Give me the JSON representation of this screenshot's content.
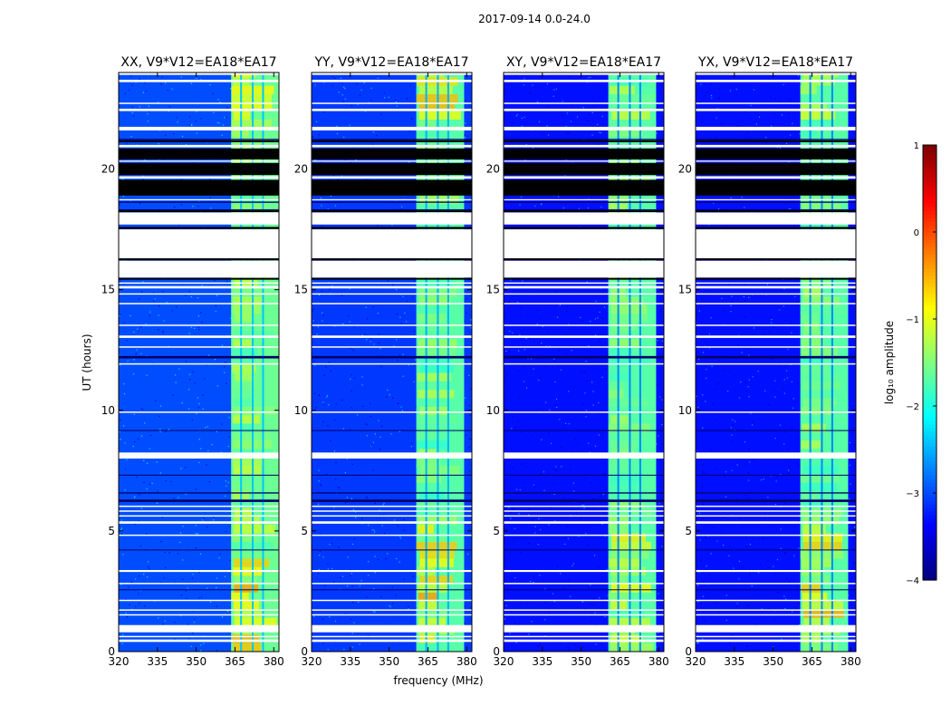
{
  "chart_data": {
    "type": "heatmap",
    "suptitle": "2017-09-14 0.0-24.0",
    "xlabel": "frequency (MHz)",
    "ylabel": "UT (hours)",
    "xlim": [
      320,
      382
    ],
    "ylim": [
      0,
      24
    ],
    "xticks": [
      320,
      335,
      350,
      365,
      380
    ],
    "yticks": [
      0,
      5,
      10,
      15,
      20
    ],
    "panels": [
      {
        "title": "XX, V9*V12=EA18*EA17",
        "band_mhz": [
          363.5,
          382
        ],
        "band_level": -1.6,
        "background_level": -3.0,
        "hot_level": -0.4
      },
      {
        "title": "YY, V9*V12=EA18*EA17",
        "band_mhz": [
          360.5,
          379
        ],
        "band_level": -1.7,
        "background_level": -3.1,
        "hot_level": -0.5
      },
      {
        "title": "XY, V9*V12=EA18*EA17",
        "band_mhz": [
          360.5,
          379
        ],
        "band_level": -1.7,
        "background_level": -3.3,
        "hot_level": -0.7
      },
      {
        "title": "YX, V9*V12=EA18*EA17",
        "band_mhz": [
          360.5,
          379
        ],
        "band_level": -1.7,
        "background_level": -3.3,
        "hot_level": -0.7
      }
    ],
    "channel_gaps_mhz": [
      367,
      371.5,
      375.5
    ],
    "flagged_white_hours": [
      [
        0.4,
        0.5
      ],
      [
        0.6,
        0.65
      ],
      [
        0.8,
        1.1
      ],
      [
        1.5,
        1.55
      ],
      [
        1.7,
        1.75
      ],
      [
        2.1,
        2.15
      ],
      [
        2.8,
        2.85
      ],
      [
        3.3,
        3.38
      ],
      [
        4.8,
        4.85
      ],
      [
        5.3,
        5.4
      ],
      [
        5.6,
        5.65
      ],
      [
        5.8,
        5.85
      ],
      [
        6.0,
        6.05
      ],
      [
        8.0,
        8.25
      ],
      [
        9.9,
        9.95
      ],
      [
        11.9,
        11.95
      ],
      [
        12.6,
        12.65
      ],
      [
        13.0,
        13.1
      ],
      [
        13.5,
        13.55
      ],
      [
        14.4,
        14.45
      ],
      [
        14.8,
        14.85
      ],
      [
        15.05,
        15.15
      ],
      [
        15.25,
        15.3
      ],
      [
        15.5,
        16.2
      ],
      [
        16.3,
        17.5
      ],
      [
        17.7,
        18.2
      ],
      [
        20.9,
        21.0
      ],
      [
        21.6,
        21.75
      ],
      [
        22.4,
        22.5
      ],
      [
        22.7,
        22.75
      ],
      [
        23.6,
        23.7
      ],
      [
        23.9,
        24.0
      ]
    ],
    "flagged_black_hours": [
      [
        18.9,
        19.55
      ],
      [
        19.75,
        20.25
      ],
      [
        20.4,
        20.85
      ]
    ],
    "dark_line_hours": [
      [
        2.55,
        2.58
      ],
      [
        4.2,
        4.23
      ],
      [
        6.2,
        6.3
      ],
      [
        6.55,
        6.6
      ],
      [
        7.3,
        7.33
      ],
      [
        9.15,
        9.18
      ],
      [
        12.15,
        12.25
      ],
      [
        16.25,
        16.3
      ],
      [
        17.55,
        17.6
      ],
      [
        18.3,
        18.33
      ],
      [
        18.6,
        18.65
      ],
      [
        21.2,
        21.25
      ]
    ],
    "colorbar": {
      "label": "log₁₀ amplitude",
      "min": -4,
      "max": 1,
      "ticks": [
        -4,
        -3,
        -2,
        -1,
        0,
        1
      ],
      "tick_labels": [
        "−4",
        "−3",
        "−2",
        "−1",
        "0",
        "1"
      ],
      "colormap": "jet"
    }
  }
}
